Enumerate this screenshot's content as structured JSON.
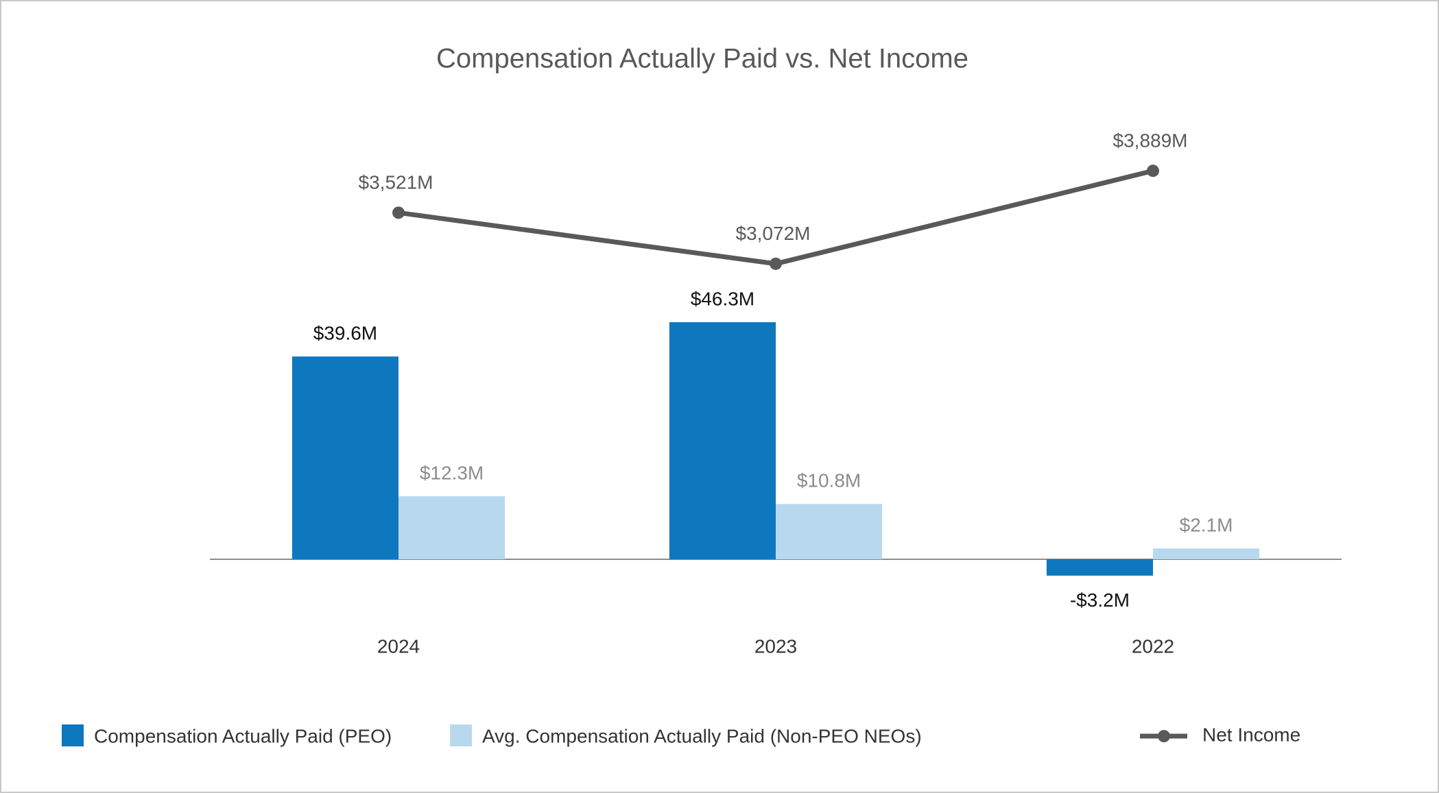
{
  "chart_data": {
    "type": "bar",
    "title": "Compensation Actually Paid vs. Net Income",
    "categories": [
      "2024",
      "2023",
      "2022"
    ],
    "series": [
      {
        "name": "Compensation Actually Paid (PEO)",
        "color": "#0e78be",
        "label_color": "#111111",
        "values": [
          39.6,
          46.3,
          -3.2
        ],
        "value_labels": [
          "$39.6M",
          "$46.3M",
          "-$3.2M"
        ]
      },
      {
        "name": "Avg. Compensation Actually Paid (Non-PEO NEOs)",
        "color": "#b8d9ed",
        "label_color": "#8c8c8c",
        "values": [
          12.3,
          10.8,
          2.1
        ],
        "value_labels": [
          "$12.3M",
          "$10.8M",
          "$2.1M"
        ]
      },
      {
        "name": "Net Income",
        "type": "line",
        "axis": "y2",
        "color": "#595959",
        "label_color": "#595959",
        "values": [
          3521,
          3072,
          3889
        ],
        "value_labels": [
          "$3,521M",
          "$3,072M",
          "$3,889M"
        ]
      }
    ],
    "ylim": [
      -15,
      85
    ],
    "y2lim": [
      -200,
      4300
    ],
    "legend": "bottom"
  }
}
